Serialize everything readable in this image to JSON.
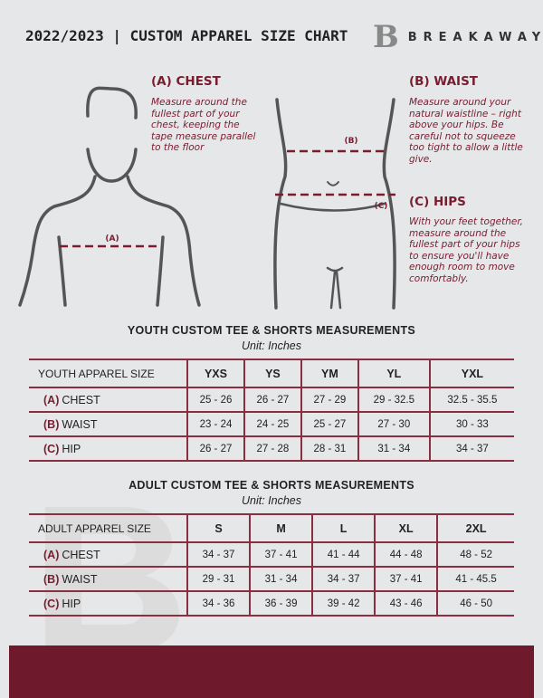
{
  "header": {
    "title": "2022/2023 | CUSTOM APPAREL SIZE CHART",
    "brand_mark": "B",
    "brand": "BREAKAWAY"
  },
  "guides": {
    "chest": {
      "heading": "(A) CHEST",
      "text": "Measure around the fullest part of your chest, keeping the tape measure parallel to the floor",
      "marker": "(A)"
    },
    "waist": {
      "heading": "(B) WAIST",
      "text": "Measure around your natural waistline – right above your hips. Be careful not to squeeze too tight to allow a little give.",
      "marker": "(B)"
    },
    "hips": {
      "heading": "(C) HIPS",
      "text": "With your feet together, measure around the fullest part of your hips to ensure you'll have enough room to move comfortably.",
      "marker": "(C)"
    }
  },
  "youth": {
    "title": "YOUTH CUSTOM TEE & SHORTS MEASUREMENTS",
    "unit": "Unit: Inches",
    "header": "YOUTH APPAREL SIZE",
    "sizes": [
      "YXS",
      "YS",
      "YM",
      "YL",
      "YXL"
    ],
    "rows": [
      {
        "code": "(A)",
        "name": "CHEST",
        "values": [
          "25 - 26",
          "26 - 27",
          "27 - 29",
          "29 - 32.5",
          "32.5 - 35.5"
        ]
      },
      {
        "code": "(B)",
        "name": "WAIST",
        "values": [
          "23 - 24",
          "24 - 25",
          "25 - 27",
          "27 - 30",
          "30 - 33"
        ]
      },
      {
        "code": "(C)",
        "name": "HIP",
        "values": [
          "26 - 27",
          "27 - 28",
          "28 - 31",
          "31 - 34",
          "34 - 37"
        ]
      }
    ]
  },
  "adult": {
    "title": "ADULT CUSTOM TEE & SHORTS MEASUREMENTS",
    "unit": "Unit: Inches",
    "header": "ADULT APPAREL SIZE",
    "sizes": [
      "S",
      "M",
      "L",
      "XL",
      "2XL"
    ],
    "rows": [
      {
        "code": "(A)",
        "name": "CHEST",
        "values": [
          "34 - 37",
          "37 - 41",
          "41 - 44",
          "44 - 48",
          "48 - 52"
        ]
      },
      {
        "code": "(B)",
        "name": "WAIST",
        "values": [
          "29 - 31",
          "31 - 34",
          "34 - 37",
          "37 - 41",
          "41 - 45.5"
        ]
      },
      {
        "code": "(C)",
        "name": "HIP",
        "values": [
          "34 - 36",
          "36 - 39",
          "39 - 42",
          "43 - 46",
          "46 - 50"
        ]
      }
    ]
  },
  "colors": {
    "accent": "#7a1c30",
    "background": "#e6e7e8",
    "footer": "#6e1a2c"
  }
}
